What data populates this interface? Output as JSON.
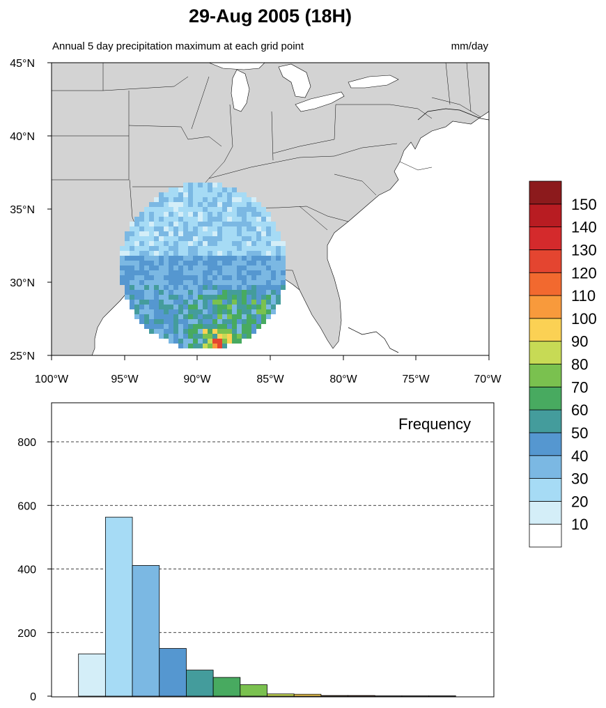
{
  "title": "29-Aug 2005 (18H)",
  "map": {
    "subtitle_left": "Annual 5 day precipitation maximum at each grid point",
    "subtitle_right": "mm/day",
    "lat_ticks": [
      "25°N",
      "30°N",
      "35°N",
      "40°N",
      "45°N"
    ],
    "lon_ticks": [
      "100°W",
      "95°W",
      "90°W",
      "85°W",
      "80°W",
      "75°W",
      "70°W"
    ],
    "land_color": "#d3d3d3",
    "water_color": "#ffffff"
  },
  "colorbar": {
    "labels": [
      "10",
      "20",
      "30",
      "40",
      "50",
      "60",
      "70",
      "80",
      "90",
      "100",
      "110",
      "120",
      "130",
      "140",
      "150"
    ],
    "colors": [
      "#ffffff",
      "#d4eef8",
      "#a6dbf5",
      "#7bb8e3",
      "#5597d0",
      "#449c9c",
      "#48aa60",
      "#7ac14f",
      "#c7da55",
      "#fbd154",
      "#f89a3c",
      "#f2692f",
      "#e44530",
      "#d42a2c",
      "#b81c22",
      "#8c1a1c"
    ]
  },
  "chart_data": {
    "type": "bar",
    "title": "",
    "annotation": "Frequency",
    "xlabel": "",
    "ylabel": "",
    "bin_edges_mm_per_day": [
      0,
      10,
      20,
      30,
      40,
      50,
      60,
      70,
      80,
      90,
      100,
      110,
      120,
      130,
      140,
      150,
      160
    ],
    "values": [
      0,
      133,
      563,
      411,
      150,
      82,
      59,
      36,
      7,
      6,
      2,
      2,
      1,
      1,
      1,
      0
    ],
    "y_ticks": [
      "0",
      "200",
      "400",
      "600",
      "800"
    ],
    "ylim": [
      0,
      900
    ],
    "grid": "dashed horizontal at 200, 400, 600, 800"
  }
}
